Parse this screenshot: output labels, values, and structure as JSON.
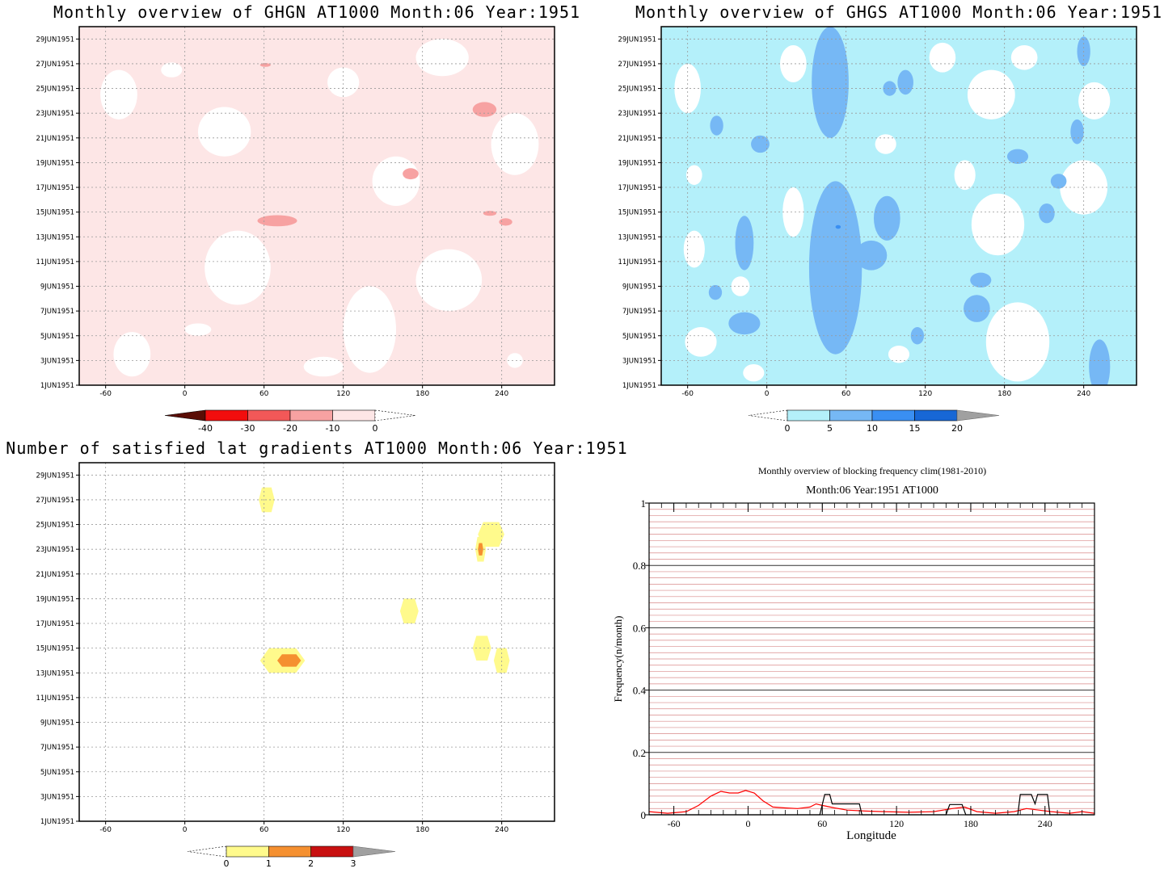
{
  "chart_data": [
    {
      "type": "heatmap",
      "title": "Monthly overview of GHGN AT1000 Month:06 Year:1951",
      "x_ticks": [
        -60,
        0,
        60,
        120,
        180,
        240
      ],
      "xlim": [
        -80,
        280
      ],
      "y_ticks": [
        "1JUN1951",
        "3JUN1951",
        "5JUN1951",
        "7JUN1951",
        "9JUN1951",
        "11JUN1951",
        "13JUN1951",
        "15JUN1951",
        "17JUN1951",
        "19JUN1951",
        "21JUN1951",
        "23JUN1951",
        "25JUN1951",
        "27JUN1951",
        "29JUN1951"
      ],
      "grid": true,
      "colorbar": {
        "labels": [
          "-40",
          "-30",
          "-20",
          "-10",
          "0"
        ],
        "colors": [
          "#5a0d05",
          "#f20d0d",
          "#f25858",
          "#f7a2a2",
          "#fde6e6"
        ],
        "extend": "both"
      },
      "regions": [
        {
          "color": "#f7a2a2",
          "lon": 70,
          "day": 14.3,
          "rx": 15,
          "ry": 0.45
        },
        {
          "color": "#f7a2a2",
          "lon": 227,
          "day": 23.3,
          "rx": 9,
          "ry": 0.6
        },
        {
          "color": "#f7a2a2",
          "lon": 171,
          "day": 18.1,
          "rx": 6,
          "ry": 0.45
        },
        {
          "color": "#f7a2a2",
          "lon": 231,
          "day": 14.9,
          "rx": 5,
          "ry": 0.2
        },
        {
          "color": "#f7a2a2",
          "lon": 243,
          "day": 14.2,
          "rx": 5,
          "ry": 0.3
        },
        {
          "color": "#f7a2a2",
          "lon": 61,
          "day": 26.9,
          "rx": 4,
          "ry": 0.15
        }
      ]
    },
    {
      "type": "heatmap",
      "title": "Monthly overview of GHGS AT1000 Month:06 Year:1951",
      "x_ticks": [
        -60,
        0,
        60,
        120,
        180,
        240
      ],
      "xlim": [
        -80,
        280
      ],
      "y_ticks": [
        "1JUN1951",
        "3JUN1951",
        "5JUN1951",
        "7JUN1951",
        "9JUN1951",
        "11JUN1951",
        "13JUN1951",
        "15JUN1951",
        "17JUN1951",
        "19JUN1951",
        "21JUN1951",
        "23JUN1951",
        "25JUN1951",
        "27JUN1951",
        "29JUN1951"
      ],
      "grid": true,
      "colorbar": {
        "labels": [
          "0",
          "5",
          "10",
          "15",
          "20"
        ],
        "colors": [
          "#b4f0fa",
          "#76b8f5",
          "#3a8ff2",
          "#1767d6",
          "#a0a0a0"
        ],
        "extend": "both"
      },
      "regions": [
        {
          "color": "#76b8f5",
          "lon": 48,
          "day": 25.5,
          "rx": 14,
          "ry": 4.5
        },
        {
          "color": "#76b8f5",
          "lon": 52,
          "day": 10.5,
          "rx": 20,
          "ry": 7
        },
        {
          "color": "#76b8f5",
          "lon": 91,
          "day": 14.5,
          "rx": 10,
          "ry": 1.8
        },
        {
          "color": "#76b8f5",
          "lon": 79,
          "day": 11.5,
          "rx": 12,
          "ry": 1.2
        },
        {
          "color": "#76b8f5",
          "lon": -17,
          "day": 12.5,
          "rx": 7,
          "ry": 2.2
        },
        {
          "color": "#76b8f5",
          "lon": -5,
          "day": 20.5,
          "rx": 7,
          "ry": 0.7
        },
        {
          "color": "#76b8f5",
          "lon": 212,
          "day": 14.9,
          "rx": 6,
          "ry": 0.8
        },
        {
          "color": "#76b8f5",
          "lon": 190,
          "day": 19.5,
          "rx": 8,
          "ry": 0.6
        },
        {
          "color": "#76b8f5",
          "lon": 235,
          "day": 21.5,
          "rx": 5,
          "ry": 1.0
        },
        {
          "color": "#76b8f5",
          "lon": 252,
          "day": 2.5,
          "rx": 8,
          "ry": 2.2
        },
        {
          "color": "#76b8f5",
          "lon": -17,
          "day": 6.0,
          "rx": 12,
          "ry": 0.9
        },
        {
          "color": "#76b8f5",
          "lon": -39,
          "day": 8.5,
          "rx": 5,
          "ry": 0.6
        },
        {
          "color": "#76b8f5",
          "lon": 159,
          "day": 7.2,
          "rx": 10,
          "ry": 1.1
        },
        {
          "color": "#76b8f5",
          "lon": 162,
          "day": 9.5,
          "rx": 8,
          "ry": 0.6
        },
        {
          "color": "#76b8f5",
          "lon": 105,
          "day": 25.5,
          "rx": 6,
          "ry": 1.0
        },
        {
          "color": "#76b8f5",
          "lon": 221,
          "day": 17.5,
          "rx": 6,
          "ry": 0.6
        },
        {
          "color": "#76b8f5",
          "lon": 240,
          "day": 28.0,
          "rx": 5,
          "ry": 1.2
        },
        {
          "color": "#76b8f5",
          "lon": 93,
          "day": 25.0,
          "rx": 5,
          "ry": 0.6
        },
        {
          "color": "#76b8f5",
          "lon": 114,
          "day": 5.0,
          "rx": 5,
          "ry": 0.7
        },
        {
          "color": "#76b8f5",
          "lon": -38,
          "day": 22.0,
          "rx": 5,
          "ry": 0.8
        },
        {
          "color": "#3a8ff2",
          "lon": 54,
          "day": 13.8,
          "rx": 2,
          "ry": 0.15
        }
      ]
    },
    {
      "type": "heatmap",
      "title": "Number of satisfied lat gradients AT1000 Month:06 Year:1951",
      "x_ticks": [
        -60,
        0,
        60,
        120,
        180,
        240
      ],
      "xlim": [
        -80,
        280
      ],
      "y_ticks": [
        "1JUN1951",
        "3JUN1951",
        "5JUN1951",
        "7JUN1951",
        "9JUN1951",
        "11JUN1951",
        "13JUN1951",
        "15JUN1951",
        "17JUN1951",
        "19JUN1951",
        "21JUN1951",
        "23JUN1951",
        "25JUN1951",
        "27JUN1951",
        "29JUN1951"
      ],
      "grid": true,
      "colorbar": {
        "labels": [
          "0",
          "1",
          "2",
          "3"
        ],
        "colors": [
          "#fffa8c",
          "#f59030",
          "#c81010",
          "#a0a0a0"
        ],
        "extend": "both"
      },
      "regions": [
        {
          "color": "#fffa8c",
          "lon": 62,
          "day": 27.0,
          "rx": 6,
          "ry": 1.0
        },
        {
          "color": "#fffa8c",
          "lon": 232,
          "day": 24.2,
          "rx": 10,
          "ry": 1.0
        },
        {
          "color": "#fffa8c",
          "lon": 224,
          "day": 23.0,
          "rx": 4,
          "ry": 1.0
        },
        {
          "color": "#fffa8c",
          "lon": 170,
          "day": 18.0,
          "rx": 7,
          "ry": 1.0
        },
        {
          "color": "#fffa8c",
          "lon": 225,
          "day": 15.0,
          "rx": 7,
          "ry": 1.0
        },
        {
          "color": "#fffa8c",
          "lon": 240,
          "day": 14.0,
          "rx": 6,
          "ry": 1.0
        },
        {
          "color": "#fffa8c",
          "lon": 74,
          "day": 14.0,
          "rx": 17,
          "ry": 1.0
        },
        {
          "color": "#f59030",
          "lon": 79,
          "day": 14.0,
          "rx": 9,
          "ry": 0.5
        },
        {
          "color": "#f59030",
          "lon": 224,
          "day": 23.0,
          "rx": 2,
          "ry": 0.5
        }
      ]
    },
    {
      "type": "line",
      "title": "Monthly overview of blocking frequency clim(1981-2010)",
      "subtitle": "Month:06 Year:1951  AT1000",
      "xlabel": "Longitude",
      "ylabel": "Frequency(n/month)",
      "xlim": [
        -80,
        280
      ],
      "ylim": [
        0,
        1
      ],
      "x_ticks": [
        -60,
        0,
        60,
        120,
        180,
        240
      ],
      "y_ticks": [
        "0",
        "0.2",
        "0.4",
        "0.6",
        "0.8",
        "1"
      ],
      "series": [
        {
          "color": "#ff0000",
          "points": [
            [
              -80,
              0.01
            ],
            [
              -65,
              0.005
            ],
            [
              -50,
              0.01
            ],
            [
              -40,
              0.03
            ],
            [
              -30,
              0.06
            ],
            [
              -22,
              0.075
            ],
            [
              -15,
              0.07
            ],
            [
              -8,
              0.07
            ],
            [
              -2,
              0.078
            ],
            [
              5,
              0.07
            ],
            [
              12,
              0.045
            ],
            [
              20,
              0.025
            ],
            [
              30,
              0.022
            ],
            [
              40,
              0.02
            ],
            [
              50,
              0.025
            ],
            [
              55,
              0.035
            ],
            [
              60,
              0.03
            ],
            [
              70,
              0.022
            ],
            [
              80,
              0.015
            ],
            [
              95,
              0.012
            ],
            [
              110,
              0.01
            ],
            [
              130,
              0.008
            ],
            [
              150,
              0.01
            ],
            [
              165,
              0.02
            ],
            [
              175,
              0.025
            ],
            [
              185,
              0.01
            ],
            [
              200,
              0.005
            ],
            [
              215,
              0.01
            ],
            [
              225,
              0.02
            ],
            [
              235,
              0.015
            ],
            [
              245,
              0.01
            ],
            [
              260,
              0.005
            ],
            [
              270,
              0.01
            ],
            [
              280,
              0.005
            ]
          ]
        },
        {
          "color": "#000000",
          "points": [
            [
              -80,
              0
            ],
            [
              58,
              0
            ],
            [
              62,
              0.065
            ],
            [
              66,
              0.065
            ],
            [
              68,
              0.035
            ],
            [
              75,
              0.035
            ],
            [
              90,
              0.035
            ],
            [
              92,
              0
            ],
            [
              160,
              0
            ],
            [
              163,
              0.033
            ],
            [
              173,
              0.033
            ],
            [
              176,
              0
            ],
            [
              218,
              0
            ],
            [
              220,
              0.065
            ],
            [
              229,
              0.065
            ],
            [
              232,
              0.035
            ],
            [
              234,
              0.065
            ],
            [
              242,
              0.065
            ],
            [
              244,
              0
            ],
            [
              280,
              0
            ]
          ]
        }
      ],
      "grid": true
    }
  ]
}
